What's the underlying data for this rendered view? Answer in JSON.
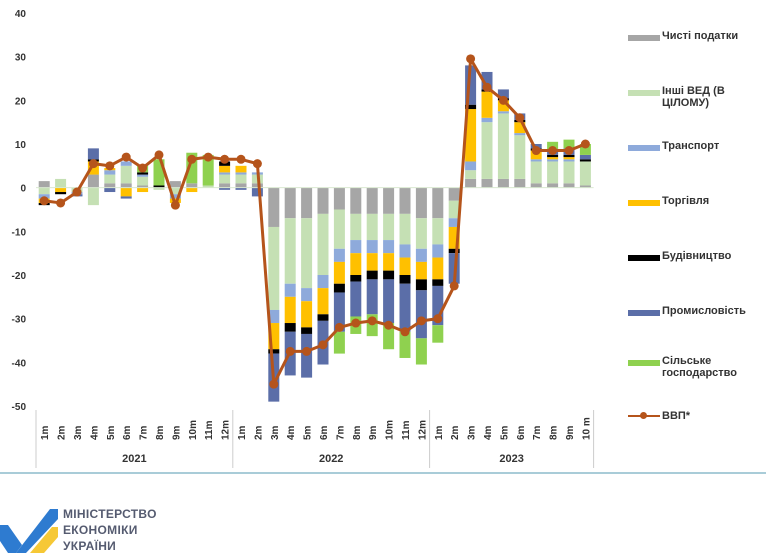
{
  "chart_data": {
    "type": "bar",
    "subtype": "stacked-bar-with-line",
    "title": "",
    "xlabel": "",
    "ylabel": "",
    "ylim": [
      -50,
      40
    ],
    "yticks": [
      40,
      30,
      20,
      10,
      0,
      -10,
      -20,
      -30,
      -40,
      -50
    ],
    "grid": false,
    "legend_position": "right",
    "groups": [
      {
        "year": "2021",
        "months": [
          "1m",
          "2m",
          "3m",
          "4m",
          "5m",
          "6m",
          "7m",
          "8m",
          "9m",
          "10m",
          "11m",
          "12m"
        ]
      },
      {
        "year": "2022",
        "months": [
          "1m",
          "2m",
          "3m",
          "4m",
          "5m",
          "6m",
          "7m",
          "8m",
          "9m",
          "10m",
          "11m",
          "12m"
        ]
      },
      {
        "year": "2023",
        "months": [
          "1m",
          "2m",
          "3m",
          "4m",
          "5m",
          "6m",
          "7m",
          "8m",
          "9m",
          "10 m"
        ]
      }
    ],
    "series": [
      {
        "name": "Чисті податки",
        "color": "#a6a6a6",
        "kind": "bar",
        "values": [
          1.5,
          0,
          0,
          3,
          1,
          1,
          0.5,
          0,
          1.5,
          1,
          0,
          1,
          1,
          1,
          -9,
          -7,
          -7,
          -6,
          -5,
          -6,
          -6,
          -6,
          -6,
          -7,
          -7,
          -3,
          2,
          2,
          2,
          2,
          1,
          1,
          1,
          0.5
        ]
      },
      {
        "name": "Інші ВЕД (В ЦІЛОМУ)",
        "color": "#c5e0b4",
        "kind": "bar",
        "values": [
          -1.5,
          2,
          -1,
          -4,
          2,
          4,
          2,
          -0.5,
          -1.5,
          0,
          0.5,
          2,
          2,
          2,
          -19,
          -15,
          -16,
          -14,
          -9,
          -6,
          -6,
          -6,
          -7,
          -7,
          -6,
          -4,
          2,
          13,
          15,
          10,
          5,
          5,
          5,
          5.5
        ]
      },
      {
        "name": "Транспорт",
        "color": "#8eaadb",
        "kind": "bar",
        "values": [
          -1,
          0,
          -0.5,
          0,
          1,
          1,
          0.5,
          0,
          -1,
          0,
          0,
          0.5,
          0.5,
          0.5,
          -3,
          -3,
          -3,
          -3,
          -3,
          -3,
          -3,
          -3,
          -3,
          -3,
          -3,
          -2,
          2,
          1,
          0.5,
          0.5,
          0.5,
          0.5,
          0.5,
          0
        ]
      },
      {
        "name": "Торгівля",
        "color": "#ffc000",
        "kind": "bar",
        "values": [
          -1,
          -1,
          0,
          3,
          0.5,
          -2,
          -1,
          0,
          -1,
          -1,
          0,
          1.5,
          1.5,
          0,
          -6,
          -6,
          -6,
          -6,
          -5,
          -5,
          -4,
          -4,
          -4,
          -4,
          -5,
          -5,
          12,
          6,
          2.5,
          2.5,
          2,
          0.5,
          0.5,
          0
        ]
      },
      {
        "name": "Будівництво",
        "color": "#000000",
        "kind": "bar",
        "values": [
          -0.5,
          -0.5,
          0,
          0.5,
          0,
          0,
          0.5,
          0.5,
          0,
          0,
          0,
          1,
          0,
          0,
          -1,
          -2,
          -1.5,
          -1.5,
          -2,
          -1.5,
          -2,
          -2,
          -2,
          -2.5,
          -1.5,
          -1,
          1,
          0.5,
          0.5,
          0.5,
          0.5,
          0.5,
          0.5,
          0.5
        ]
      },
      {
        "name": "Промисловість",
        "color": "#5b6ea8",
        "kind": "bar",
        "values": [
          0,
          0,
          -0.5,
          2.5,
          -1,
          -0.5,
          0,
          0,
          0,
          0,
          0,
          -0.5,
          -0.5,
          -2,
          -11,
          -10,
          -10,
          -10,
          -9,
          -8,
          -8,
          -10,
          -11,
          -11,
          -9,
          -7,
          9,
          4,
          2,
          1.5,
          1,
          1,
          1.5,
          1
        ]
      },
      {
        "name": "Сільське господарство",
        "color": "#8fd14f",
        "kind": "bar",
        "values": [
          0,
          0,
          0,
          0,
          0,
          0,
          1.5,
          6,
          0,
          7,
          7,
          0,
          0,
          0,
          0,
          0,
          0,
          0,
          -5,
          -4,
          -5,
          -6,
          -6,
          -6,
          -4,
          0,
          0,
          0,
          0,
          0,
          0,
          2,
          2,
          2.5
        ]
      },
      {
        "name": "ВВП*",
        "color": "#b5541b",
        "kind": "line",
        "values": [
          -3,
          -3.5,
          -1,
          5.5,
          5,
          7,
          4.5,
          7.5,
          -4,
          6.5,
          7,
          6.5,
          6.5,
          5.5,
          -45,
          -37.5,
          -37.5,
          -36,
          -32,
          -31,
          -30.5,
          -31.5,
          -33,
          -30.5,
          -30,
          -22.5,
          29.5,
          23,
          20,
          16,
          8.5,
          8.5,
          8.5,
          10
        ]
      }
    ]
  },
  "legend": {
    "items": [
      {
        "label": "Чисті податки",
        "color": "#a6a6a6"
      },
      {
        "label": "Інші ВЕД (В ЦІЛОМУ)",
        "color": "#c5e0b4"
      },
      {
        "label": "Транспорт",
        "color": "#8eaadb"
      },
      {
        "label": "Торгівля",
        "color": "#ffc000"
      },
      {
        "label": "Будівництво",
        "color": "#000000"
      },
      {
        "label": "Промисловість",
        "color": "#5b6ea8"
      },
      {
        "label": "Сільське господарство",
        "color": "#8fd14f"
      },
      {
        "label": "ВВП*",
        "color": "#b5541b"
      }
    ]
  },
  "footer": {
    "logo_lines": [
      "МІНІСТЕРСТВО",
      "ЕКОНОМІКИ",
      "УКРАЇНИ"
    ],
    "logo_colors": {
      "blue": "#2e7bd0",
      "yellow": "#f6c836"
    },
    "divider_color": "#a9ccd8"
  }
}
